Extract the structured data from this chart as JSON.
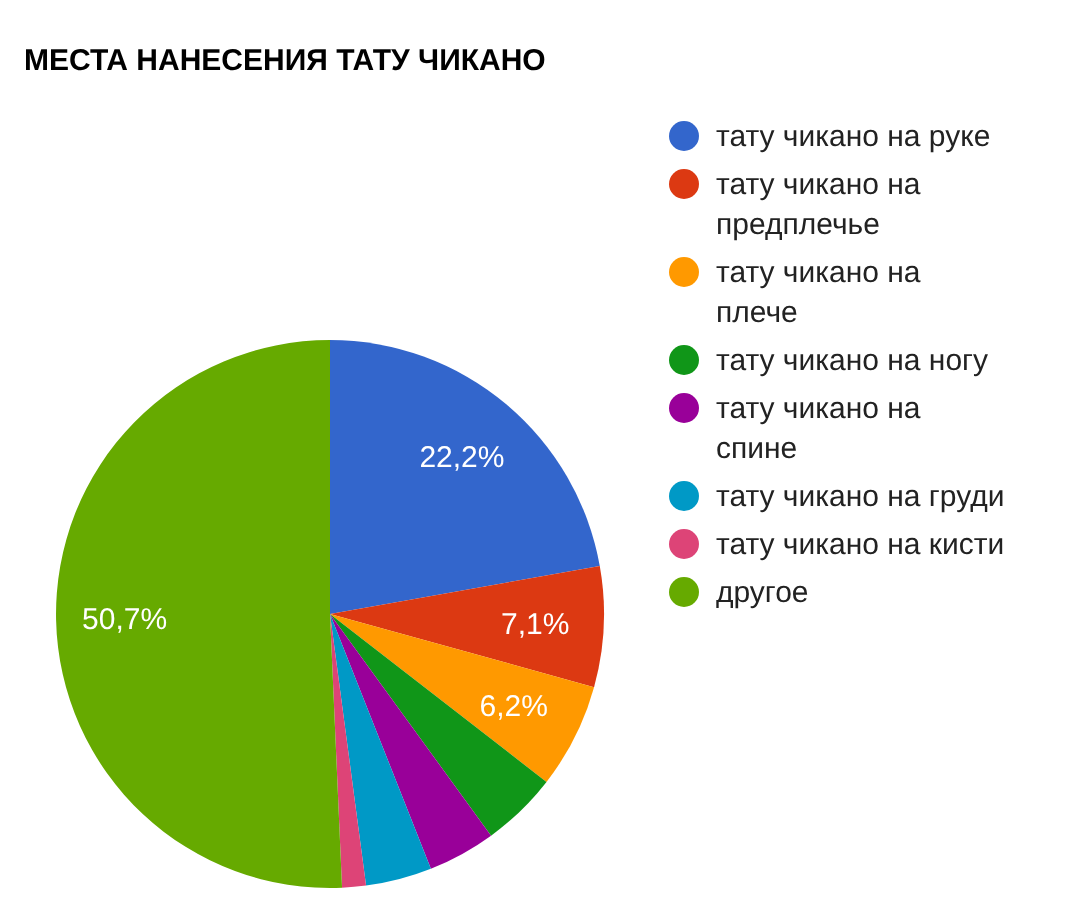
{
  "chart_data": {
    "type": "pie",
    "title": "МЕСТА НАНЕСЕНИЯ ТАТУ ЧИКАНО",
    "categories": [
      "тату чикано на руке",
      "тату чикано на предплечье",
      "тату чикано на плече",
      "тату чикано на ногу",
      "тату чикано на спине",
      "тату чикано на груди",
      "тату чикано на кисти",
      "другое"
    ],
    "values": [
      22.2,
      7.1,
      6.2,
      4.5,
      4.0,
      3.9,
      1.4,
      50.7
    ],
    "colors": [
      "#3366cc",
      "#dc3912",
      "#ff9900",
      "#109618",
      "#990099",
      "#0099c6",
      "#dd4477",
      "#66aa00"
    ],
    "value_labels": [
      "22,2%",
      "7,1%",
      "6,2%",
      null,
      null,
      null,
      null,
      "50,7%"
    ],
    "legend": "right"
  }
}
